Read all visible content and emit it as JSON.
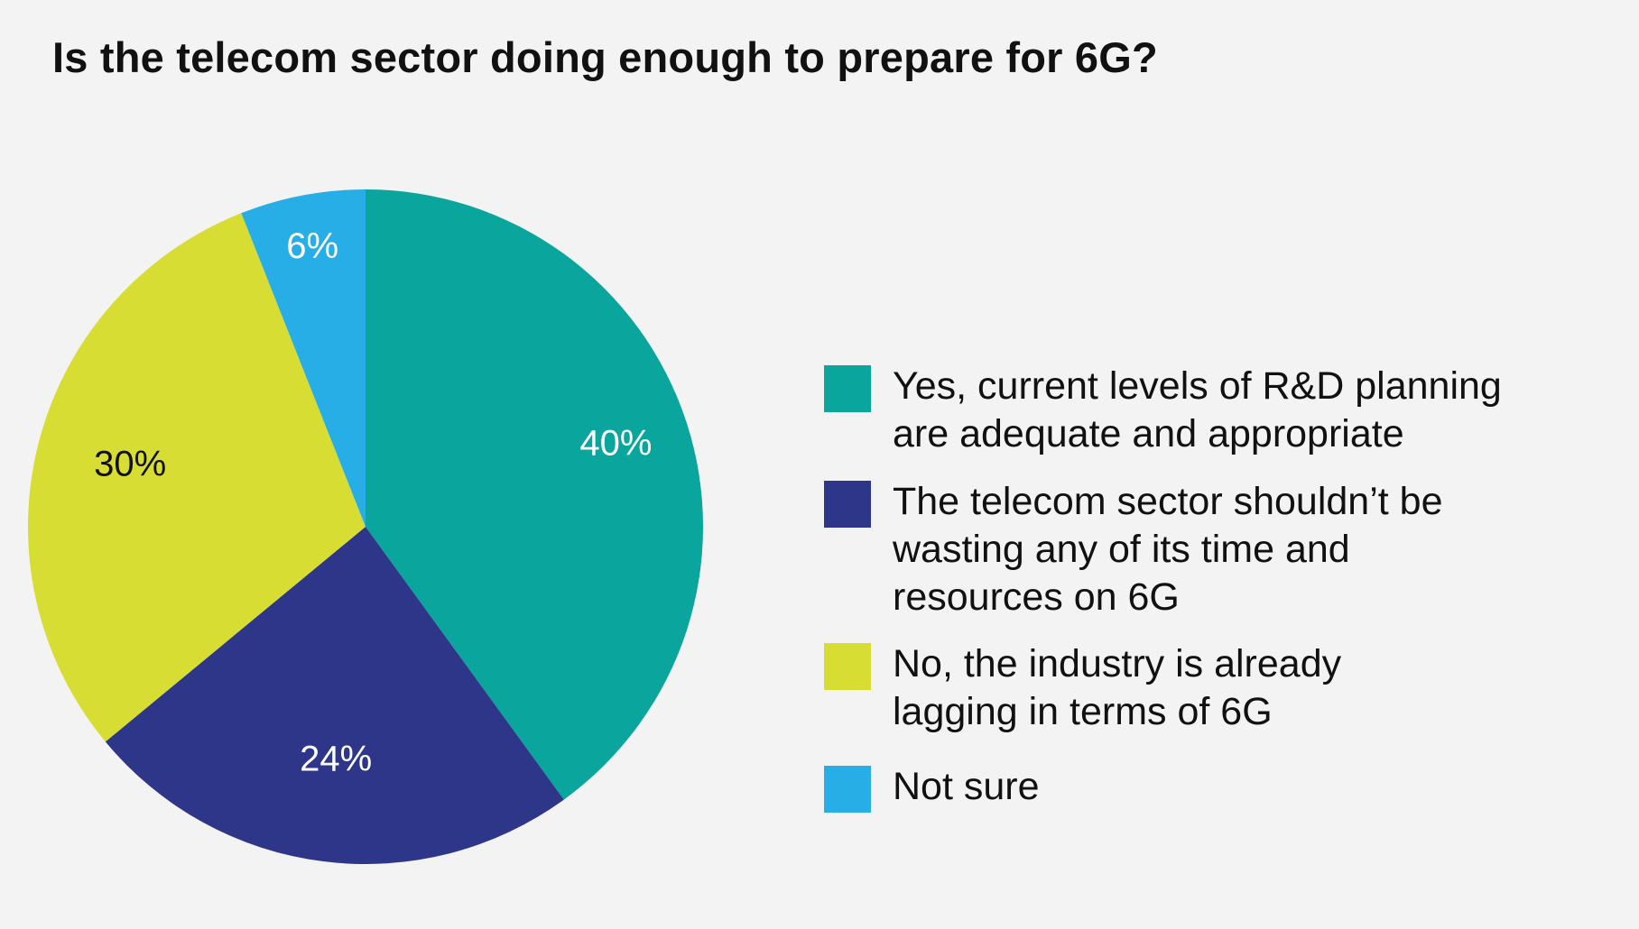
{
  "chart_data": {
    "type": "pie",
    "title": "Is the telecom sector doing enough to prepare for 6G?",
    "slices": [
      {
        "label": "Yes, current levels of R&D planning are adequate and appropriate",
        "value": 40,
        "display": "40%",
        "color": "#0aa59c",
        "label_color": "#ffffff"
      },
      {
        "label": "The telecom sector shouldn’t be wasting any of its time and resources on 6G",
        "value": 24,
        "display": "24%",
        "color": "#2e368a",
        "label_color": "#ffffff"
      },
      {
        "label": "No, the industry is already lagging in terms of 6G",
        "value": 30,
        "display": "30%",
        "color": "#d8dd33",
        "label_color": "#111111"
      },
      {
        "label": "Not sure",
        "value": 6,
        "display": "6%",
        "color": "#27aee6",
        "label_color": "#ffffff"
      }
    ],
    "start_angle_deg": 0,
    "direction": "clockwise",
    "legend_position": "right"
  }
}
